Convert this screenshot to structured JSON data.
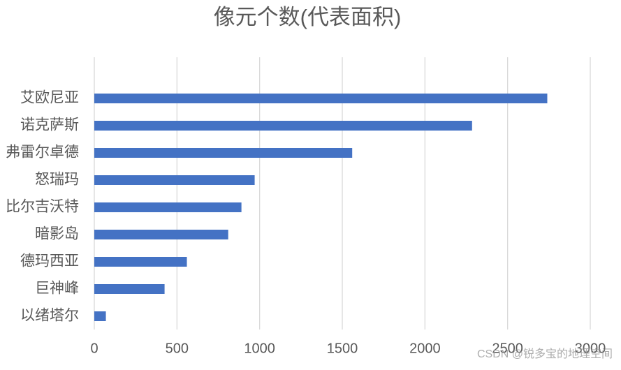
{
  "chart_data": {
    "type": "hbar",
    "title": "像元个数(代表面积)",
    "categories": [
      "艾欧尼亚",
      "诺克萨斯",
      "弗雷尔卓德",
      "怒瑞玛",
      "比尔吉沃特",
      "暗影岛",
      "德玛西亚",
      "巨神峰",
      "以绪塔尔"
    ],
    "values": [
      2740,
      2285,
      1560,
      970,
      890,
      810,
      560,
      425,
      70
    ],
    "color": "#4472c4",
    "xlim": [
      0,
      3000
    ],
    "xticks": [
      0,
      500,
      1000,
      1500,
      2000,
      2500,
      3000
    ],
    "grid": true,
    "watermark": "CSDN @锐多宝的地理空间"
  }
}
